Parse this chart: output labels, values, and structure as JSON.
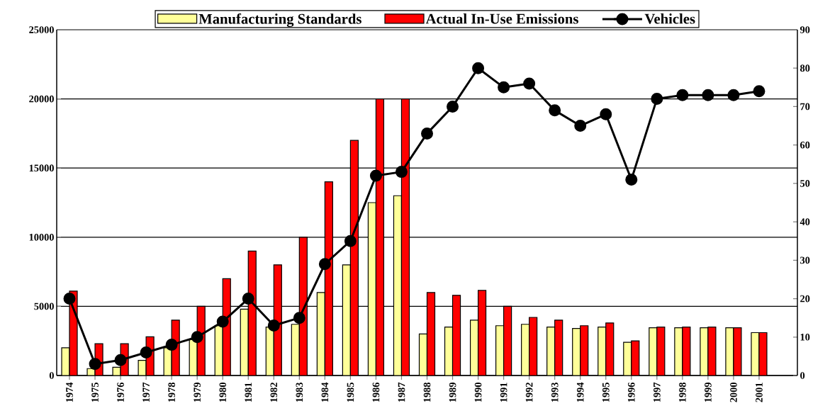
{
  "chart_data": {
    "type": "bar",
    "categories": [
      "1974",
      "1975",
      "1976",
      "1977",
      "1978",
      "1979",
      "1980",
      "1981",
      "1982",
      "1983",
      "1984",
      "1985",
      "1986",
      "1987",
      "1988",
      "1989",
      "1990",
      "1991",
      "1992",
      "1993",
      "1994",
      "1995",
      "1996",
      "1997",
      "1998",
      "1999",
      "2000",
      "2001"
    ],
    "series": [
      {
        "name": "Manufacturing Standards",
        "color": "#ffff99",
        "values": [
          2000,
          500,
          600,
          1100,
          2000,
          2600,
          3600,
          4800,
          3500,
          3700,
          6000,
          8000,
          12500,
          13000,
          3000,
          3500,
          4000,
          3600,
          3700,
          3500,
          3400,
          3500,
          2400,
          3450,
          3450,
          3450,
          3450,
          3100
        ]
      },
      {
        "name": "Actual In-Use Emissions",
        "color": "#ff0000",
        "values": [
          6100,
          2300,
          2300,
          2800,
          4000,
          5000,
          7000,
          9000,
          8000,
          10000,
          14000,
          17000,
          20000,
          20000,
          6000,
          5800,
          6150,
          5000,
          4200,
          4000,
          3600,
          3800,
          2500,
          3500,
          3500,
          3500,
          3450,
          3100
        ]
      },
      {
        "name": "Vehicles",
        "type": "line",
        "axis": "y2",
        "color": "#000000",
        "values": [
          20,
          3,
          4,
          6,
          8,
          10,
          14,
          20,
          13,
          15,
          29,
          35,
          52,
          53,
          63,
          70,
          80,
          75,
          76,
          69,
          65,
          68,
          51,
          72,
          73,
          73,
          73,
          74
        ]
      }
    ],
    "ylim": [
      0,
      25000
    ],
    "yticks": [
      0,
      5000,
      10000,
      15000,
      20000,
      25000
    ],
    "y2lim": [
      0,
      90
    ],
    "y2ticks": [
      0,
      10,
      20,
      30,
      40,
      50,
      60,
      70,
      80,
      90
    ],
    "grid": "y",
    "legend": "top",
    "marker": "circle",
    "line_style": "solid"
  }
}
